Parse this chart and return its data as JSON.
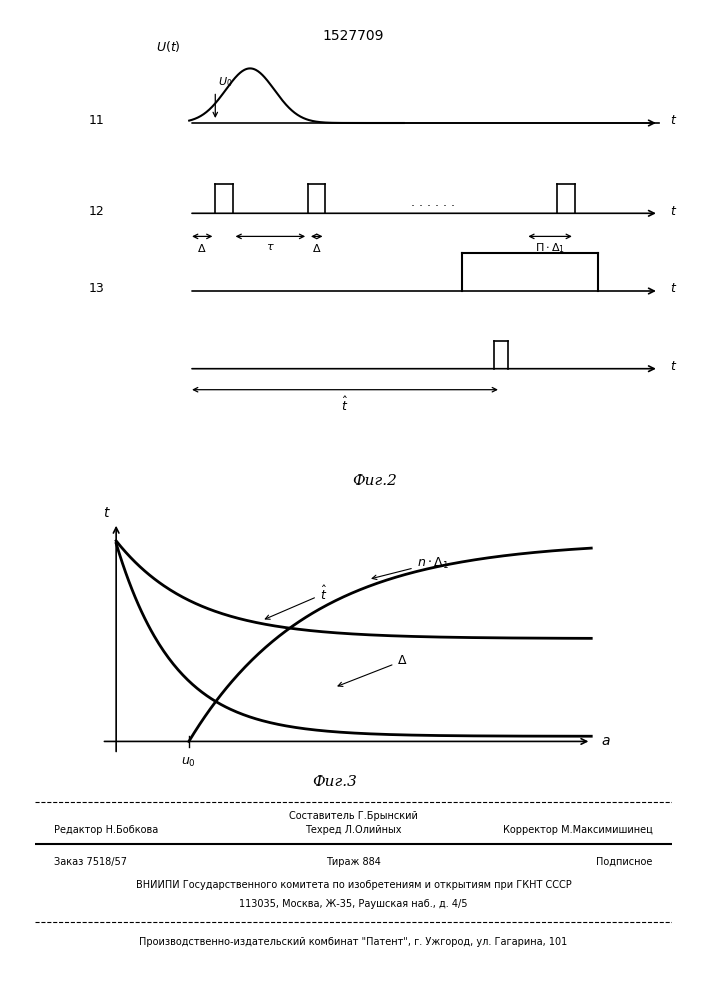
{
  "title": "1527709",
  "fig2_label": "Фиг.2",
  "fig3_label": "Фиг.3",
  "bg_color": "#ffffff",
  "line_color": "#000000"
}
